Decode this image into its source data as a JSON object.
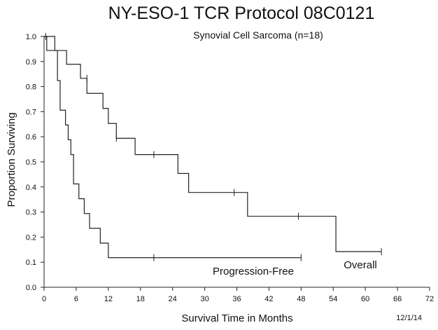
{
  "chart_data": {
    "type": "line",
    "title": "NY-ESO-1 TCR Protocol 08C0121",
    "subtitle": "Synovial Cell Sarcoma (n=18)",
    "xlabel": "Survival Time in Months",
    "ylabel": "Proportion Surviving",
    "xlim": [
      0,
      72
    ],
    "ylim": [
      0,
      1
    ],
    "xticks": [
      0,
      6,
      12,
      18,
      24,
      30,
      36,
      42,
      48,
      54,
      60,
      66,
      72
    ],
    "yticks": [
      0.0,
      0.1,
      0.2,
      0.3,
      0.4,
      0.5,
      0.6,
      0.7,
      0.8,
      0.9,
      1.0
    ],
    "grid": false,
    "date_note": "12/1/14",
    "series": [
      {
        "name": "Overall",
        "label": "Overall",
        "step": true,
        "x": [
          0,
          0.5,
          4.2,
          6.8,
          8.0,
          11.0,
          12.0,
          13.5,
          17.0,
          25.0,
          27.0,
          38.0,
          54.5,
          63.0
        ],
        "y": [
          1.0,
          0.944,
          0.889,
          0.833,
          0.773,
          0.713,
          0.653,
          0.594,
          0.529,
          0.454,
          0.378,
          0.283,
          0.142,
          0.142
        ],
        "censor_times": [
          8.0,
          13.5,
          20.5,
          35.5,
          47.5,
          63.0
        ],
        "censor_values": [
          0.833,
          0.594,
          0.529,
          0.378,
          0.283,
          0.142
        ]
      },
      {
        "name": "Progression-Free",
        "label": "Progression-Free",
        "step": true,
        "x": [
          0,
          2.0,
          2.5,
          3.0,
          4.0,
          4.5,
          5.0,
          5.5,
          6.5,
          7.5,
          8.5,
          10.5,
          12.0,
          48.0
        ],
        "y": [
          1.0,
          0.944,
          0.824,
          0.706,
          0.647,
          0.588,
          0.529,
          0.412,
          0.353,
          0.294,
          0.235,
          0.176,
          0.118,
          0.118
        ],
        "censor_times": [
          0.3,
          20.5,
          48.0
        ],
        "censor_values": [
          1.0,
          0.118,
          0.118
        ]
      }
    ]
  }
}
